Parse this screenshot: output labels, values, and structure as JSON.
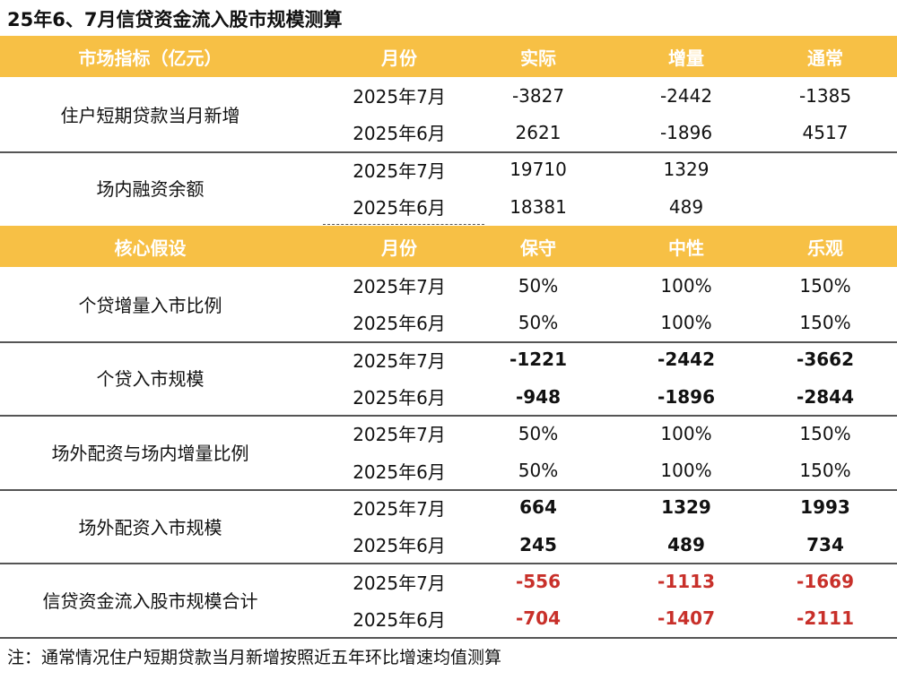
{
  "title": "25年6、7月信贷资金流入股市规模测算",
  "sections": [
    {
      "header": [
        "市场指标（亿元）",
        "月份",
        "实际",
        "增量",
        "通常"
      ],
      "groups": [
        {
          "label": "住户短期贷款当月新增",
          "rows": [
            [
              "2025年7月",
              "-3827",
              "-2442",
              "-1385"
            ],
            [
              "2025年6月",
              "2621",
              "-1896",
              "4517"
            ]
          ]
        },
        {
          "label": "场内融资余额",
          "rows": [
            [
              "2025年7月",
              "19710",
              "1329"
            ],
            [
              "2025年6月",
              "18381",
              "489"
            ]
          ]
        }
      ]
    },
    {
      "header": [
        "核心假设",
        "月份",
        "保守",
        "中性",
        "乐观"
      ],
      "groups": [
        {
          "label": "个贷增量入市比例",
          "rows": [
            [
              "2025年7月",
              "50%",
              "100%",
              "150%"
            ],
            [
              "2025年6月",
              "50%",
              "100%",
              "150%"
            ]
          ]
        },
        {
          "label": "个贷入市规模",
          "bold": true,
          "rows": [
            [
              "2025年7月",
              "-1221",
              "-2442",
              "-3662"
            ],
            [
              "2025年6月",
              "-948",
              "-1896",
              "-2844"
            ]
          ]
        },
        {
          "label": "场外配资与场内增量比例",
          "rows": [
            [
              "2025年7月",
              "50%",
              "100%",
              "150%"
            ],
            [
              "2025年6月",
              "50%",
              "100%",
              "150%"
            ]
          ]
        },
        {
          "label": "场外配资入市规模",
          "bold": true,
          "rows": [
            [
              "2025年7月",
              "664",
              "1329",
              "1993"
            ],
            [
              "2025年6月",
              "245",
              "489",
              "734"
            ]
          ]
        },
        {
          "label": "信贷资金流入股市规模合计",
          "bold": true,
          "color": "#c8302a",
          "rows": [
            [
              "2025年7月",
              "-556",
              "-1113",
              "-1669"
            ],
            [
              "2025年6月",
              "-704",
              "-1407",
              "-2111"
            ]
          ]
        }
      ]
    }
  ],
  "note": "注：通常情况住户短期贷款当月新增按照近五年环比增速均值测算"
}
